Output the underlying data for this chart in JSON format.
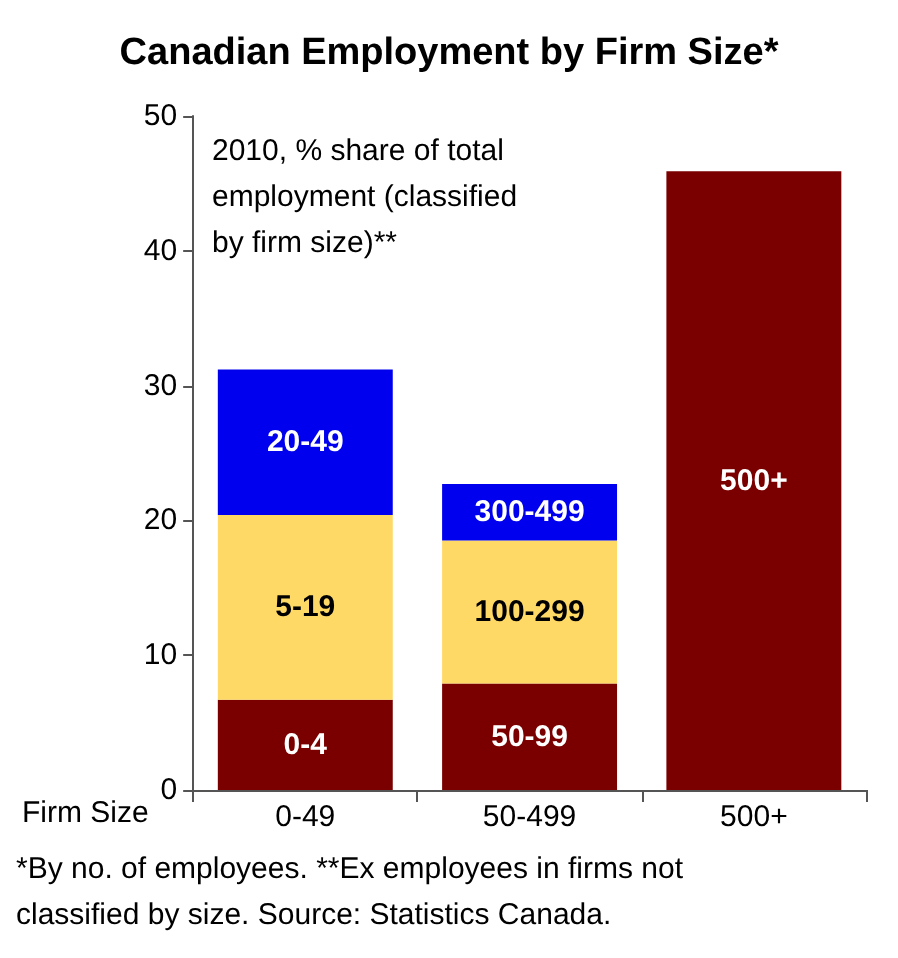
{
  "chart_data": {
    "type": "bar",
    "title": "Canadian Employment by Firm Size*",
    "xlabel": "Firm Size",
    "categories": [
      "0-49",
      "50-499",
      "500+"
    ],
    "stacked": true,
    "series": [
      {
        "color": "#7a0000",
        "values": [
          6.7,
          7.9,
          45.9
        ],
        "value_labels": [
          "0-4",
          "50-99",
          "500+"
        ]
      },
      {
        "color": "#ffd966",
        "values": [
          13.7,
          10.6,
          null
        ],
        "value_labels": [
          "5-19",
          "100-299",
          null
        ]
      },
      {
        "color": "#0000ee",
        "values": [
          10.8,
          4.2,
          null
        ],
        "value_labels": [
          "20-49",
          "300-499",
          null
        ]
      }
    ],
    "ylim": [
      0,
      50
    ],
    "yticks": [
      0,
      10,
      20,
      30,
      40,
      50
    ],
    "grid": false,
    "annotations": [
      "2010, % share of total employment (classified by firm size)**",
      "*By no. of employees. **Ex employees in firms not classified by size. Source: Statistics Canada."
    ]
  }
}
